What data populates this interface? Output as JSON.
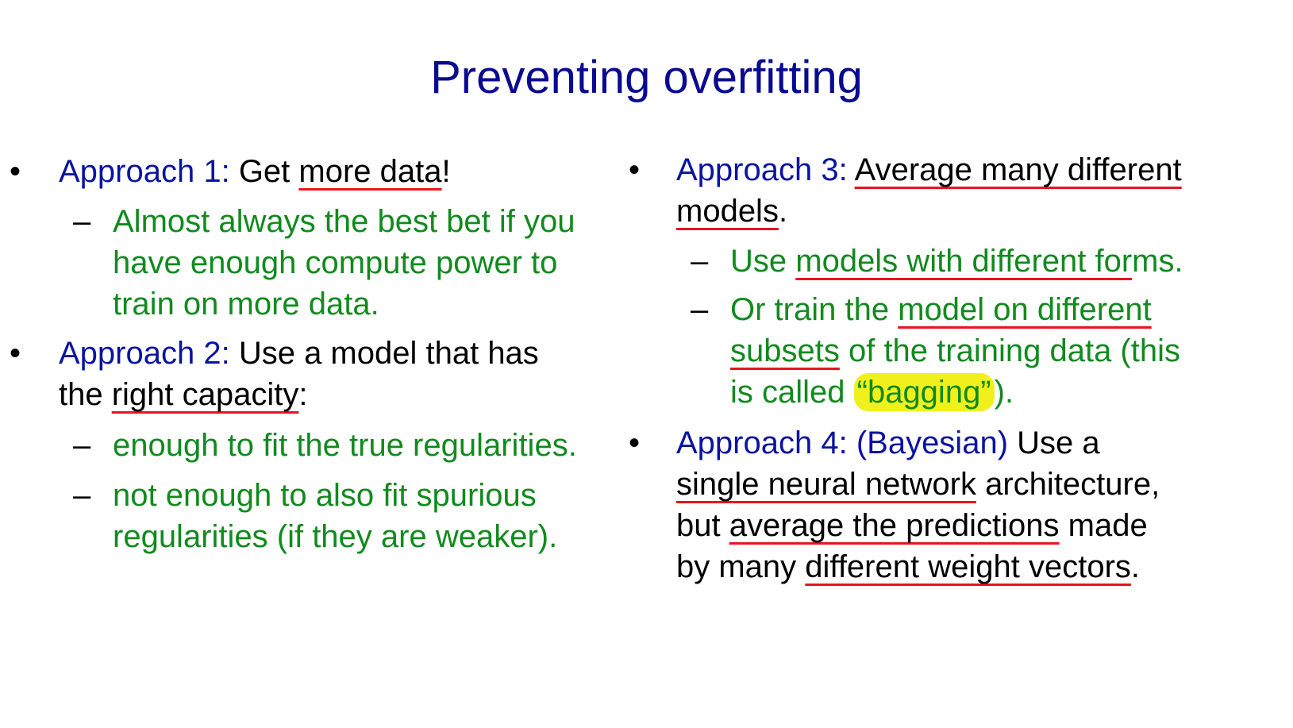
{
  "title": "Preventing overfitting",
  "bullet_glyph": "•",
  "dash_glyph": "–",
  "left": {
    "a1": {
      "label": "Approach 1:",
      "t1": " Get ",
      "u1": "more data",
      "t2": "!",
      "sub1": {
        "l1": "Almost always the best bet if you",
        "l2": "have enough compute power to",
        "l3": "train on more data."
      }
    },
    "a2": {
      "label": "Approach 2:",
      "t1": " Use a model that has",
      "t2": "the ",
      "u1": "right capacity",
      "t3": ":",
      "sub1": "enough to fit the true regularities.",
      "sub2": {
        "l1": "not enough to also fit spurious",
        "l2": "regularities (if they are weaker)."
      }
    }
  },
  "right": {
    "a3": {
      "label": "Approach 3:",
      "sp": " ",
      "u1": "Average many different",
      "u2": "models",
      "t1": ".",
      "sub1": {
        "t1": "Use ",
        "u1": "models with different for",
        "t2": "ms."
      },
      "sub2": {
        "t1": "Or train the ",
        "u1": "model on different",
        "u2": "subsets",
        "t2": " of the training data (this",
        "t3": "is called ",
        "hl": "“bagging”",
        "t4": ")."
      }
    },
    "a4": {
      "label": "Approach 4: (Bayesian)",
      "t1": " Use a",
      "u1": "single neural network",
      "t2": " architecture,",
      "t3": "but ",
      "u2": "average the predictions",
      "t4": " made",
      "t5": "by many ",
      "u3": "different weight vectors",
      "t6": "."
    }
  }
}
